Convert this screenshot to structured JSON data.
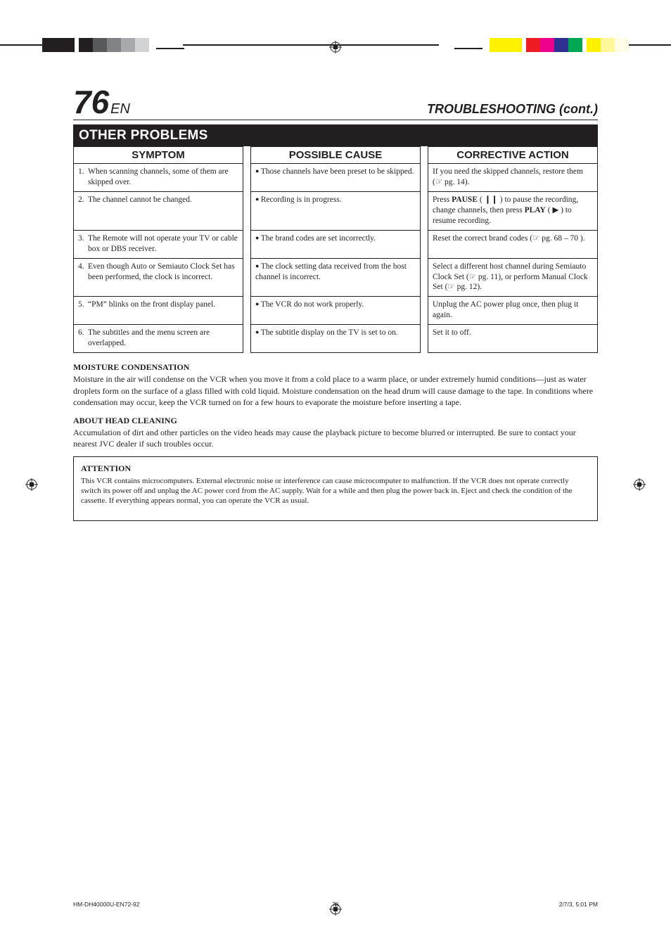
{
  "page_number": "76",
  "page_suffix": "EN",
  "section_title": "TROUBLESHOOTING (cont.)",
  "blackbar": "OTHER PROBLEMS",
  "headers": {
    "c1": "SYMPTOM",
    "c2": "POSSIBLE CAUSE",
    "c3": "CORRECTIVE ACTION"
  },
  "rows": [
    {
      "n": "1.",
      "symptom": "When scanning channels, some of them are skipped over.",
      "cause": "Those channels have been preset to be skipped.",
      "action": "If you need the skipped channels, restore them (☞ pg. 14)."
    },
    {
      "n": "2.",
      "symptom": "The channel cannot be changed.",
      "cause": "Recording is in progress.",
      "action": "Press <b>PAUSE</b> ( ❙❙ ) to pause the recording, change channels, then press <b>PLAY</b> ( ▶ ) to resume recording."
    },
    {
      "n": "3.",
      "symptom": "The Remote will not operate your TV or cable box or DBS receiver.",
      "cause": "The brand codes are set incorrectly.",
      "action": "Reset the correct brand codes (☞ pg. 68 – 70 )."
    },
    {
      "n": "4.",
      "symptom": "Even though Auto or Semiauto Clock Set has been performed, the clock is incorrect.",
      "cause": "The clock setting data received from the host channel is incorrect.",
      "action": "Select a different host channel during Semiauto Clock Set (☞ pg. 11), or perform Manual Clock Set (☞ pg. 12)."
    },
    {
      "n": "5.",
      "symptom": "“PM” blinks on the front display panel.",
      "cause": "The VCR do not work properly.",
      "action": "Unplug the AC power plug once, then plug it again."
    },
    {
      "n": "6.",
      "symptom": "The subtitles and the menu screen are overlapped.",
      "cause": "The subtitle display on the TV is set to on.",
      "action": "Set it to off."
    }
  ],
  "moisture": {
    "title": "MOISTURE CONDENSATION",
    "body": "Moisture in the air will condense on the VCR when you move it from a cold place to a warm place, or under extremely humid conditions—just as water droplets form on the surface of a glass filled with cold liquid. Moisture condensation on the head drum will cause damage to the tape. In conditions where condensation may occur, keep the VCR turned on for a few hours to evaporate the moisture before inserting a tape."
  },
  "head": {
    "title": "ABOUT HEAD CLEANING",
    "body": "Accumulation of dirt and other particles on the video heads may cause the playback picture to become blurred or interrupted. Be sure to contact your nearest JVC dealer if such troubles occur."
  },
  "attention": {
    "title": "ATTENTION",
    "body": "This VCR contains microcomputers. External electronic noise or interference can cause microcomputer to malfunction. If the VCR does not operate correctly switch its power off and unplug the AC power cord from the AC supply. Wait for a while and then plug the power back in. Eject and check the condition of the cassette. If everything appears normal, you can operate the VCR as usual."
  },
  "footer": {
    "left": "HM-DH40000U-EN72-92",
    "mid": "76",
    "right": "2/7/3, 5:01 PM"
  }
}
